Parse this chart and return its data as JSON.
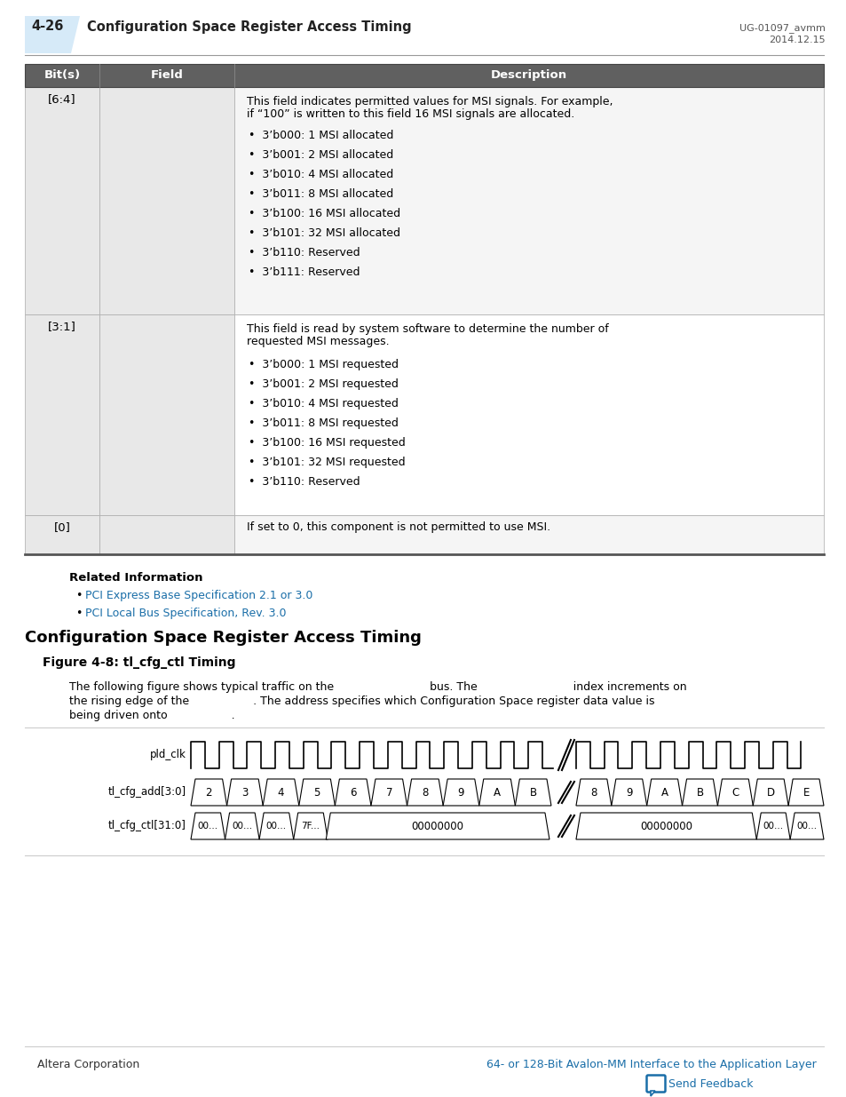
{
  "page_num": "4-26",
  "header_title": "Configuration Space Register Access Timing",
  "header_right_top": "UG-01097_avmm",
  "header_right_bot": "2014.12.15",
  "table_header": [
    "Bit(s)",
    "Field",
    "Description"
  ],
  "table_header_bg": "#606060",
  "table_header_fg": "#ffffff",
  "table_row1_bits": "[6:4]",
  "table_row1_desc_intro": "This field indicates permitted values for MSI signals. For example,\nif “100” is written to this field 16 MSI signals are allocated.",
  "table_row1_bullets": [
    "3’b000: 1 MSI allocated",
    "3’b001: 2 MSI allocated",
    "3’b010: 4 MSI allocated",
    "3’b011: 8 MSI allocated",
    "3’b100: 16 MSI allocated",
    "3’b101: 32 MSI allocated",
    "3’b110: Reserved",
    "3’b111: Reserved"
  ],
  "table_row2_bits": "[3:1]",
  "table_row2_desc_intro": "This field is read by system software to determine the number of\nrequested MSI messages.",
  "table_row2_bullets": [
    "3’b000: 1 MSI requested",
    "3’b001: 2 MSI requested",
    "3’b010: 4 MSI requested",
    "3’b011: 8 MSI requested",
    "3’b100: 16 MSI requested",
    "3’b101: 32 MSI requested",
    "3’b110: Reserved"
  ],
  "table_row3_bits": "[0]",
  "table_row3_desc": "If set to 0, this component is not permitted to use MSI.",
  "table_bg_dark": "#e8e8e8",
  "table_bg_light": "#f5f5f5",
  "related_info_header": "Related Information",
  "related_links": [
    "PCI Express Base Specification 2.1 or 3.0",
    "PCI Local Bus Specification, Rev. 3.0"
  ],
  "link_color": "#1a6ea8",
  "section_title": "Configuration Space Register Access Timing",
  "figure_title": "Figure 4-8: tl_cfg_ctl Timing",
  "para_line1": "The following figure shows typical traffic on the                           bus. The                           index increments on",
  "para_line2": "the rising edge of the                  . The address specifies which Configuration Space register data value is",
  "para_line3": "being driven onto                  .",
  "timing_label_clk": "pld_clk",
  "timing_label_add": "tl_cfg_add[3:0]",
  "timing_label_ctl": "tl_cfg_ctl[31:0]",
  "add_segments_left": [
    "2",
    "3",
    "4",
    "5",
    "6",
    "7",
    "8",
    "9",
    "A",
    "B"
  ],
  "add_segments_right": [
    "8",
    "9",
    "A",
    "B",
    "C",
    "D",
    "E"
  ],
  "ctl_segments_left": [
    "00...",
    "00...",
    "00...",
    "7F..."
  ],
  "ctl_segments_mid1": "00000000",
  "ctl_segments_mid2": "00000000",
  "ctl_segments_right": [
    "00...",
    "00..."
  ],
  "footer_left": "Altera Corporation",
  "footer_right": "64- or 128-Bit Avalon-MM Interface to the Application Layer",
  "footer_link_color": "#1a6ea8",
  "feedback_text": "Send Feedback",
  "feedback_bubble_color": "#1a6ea8",
  "bg_color": "#ffffff",
  "header_blue_bg": "#d6eaf8",
  "border_color": "#aaaaaa",
  "table_border_bottom": "#555555"
}
